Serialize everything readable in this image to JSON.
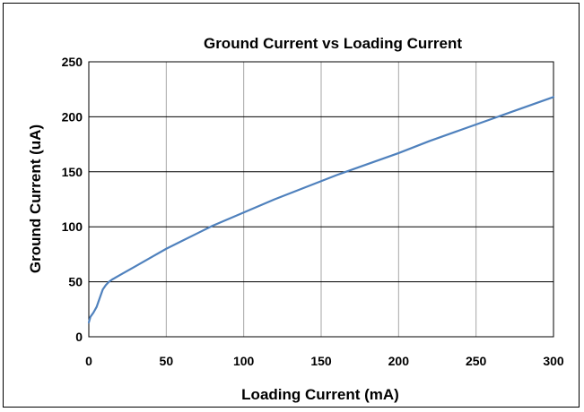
{
  "chart_data": {
    "type": "line",
    "title": "Ground Current vs  Loading Current",
    "xlabel": "Loading Current (mA)",
    "ylabel": "Ground Current  (uA)",
    "xlim": [
      0,
      300
    ],
    "ylim": [
      0,
      250
    ],
    "x_ticks": [
      "0",
      "50",
      "100",
      "150",
      "200",
      "250",
      "300"
    ],
    "y_ticks": [
      "0",
      "50",
      "100",
      "150",
      "200",
      "250"
    ],
    "grid": true,
    "line_color": "#4f81bd",
    "series": [
      {
        "x": [
          0,
          1,
          3,
          5,
          7,
          9,
          11,
          13,
          15,
          20,
          30,
          40,
          50,
          60,
          70,
          80,
          90,
          100,
          120,
          140,
          160,
          180,
          200,
          220,
          240,
          260,
          280,
          300
        ],
        "values": [
          13,
          18,
          22,
          27,
          35,
          43,
          47,
          50,
          52,
          56,
          64,
          72,
          80,
          87,
          94,
          101,
          107,
          113,
          125,
          136,
          147,
          157,
          167,
          178,
          188,
          198,
          208,
          218
        ]
      }
    ]
  }
}
